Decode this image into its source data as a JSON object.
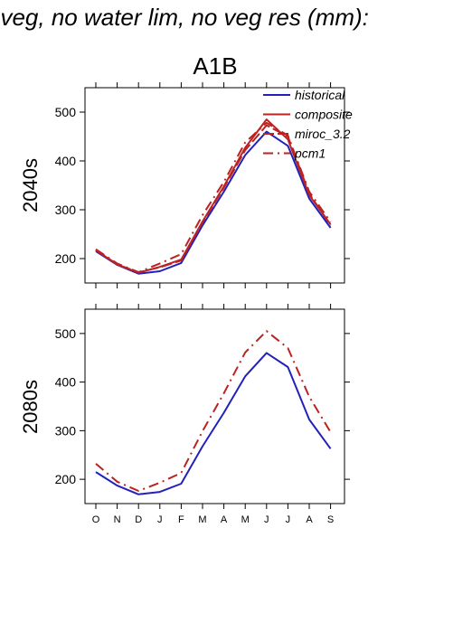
{
  "figure": {
    "title": "f veg, no water lim, no veg res (mm):",
    "scenario": "A1B"
  },
  "chart_data": [
    {
      "type": "line",
      "row_label": "2040s",
      "x": [
        "O",
        "N",
        "D",
        "J",
        "F",
        "M",
        "A",
        "M",
        "J",
        "J",
        "A",
        "S"
      ],
      "ylim": [
        150,
        550
      ],
      "yticks": [
        200,
        300,
        400,
        500
      ],
      "grid": false,
      "legend_position": "top-right",
      "series": [
        {
          "name": "historical",
          "color": "#2222bb",
          "style": "solid",
          "values": [
            215,
            187,
            169,
            174,
            191,
            268,
            337,
            412,
            460,
            431,
            323,
            263
          ]
        },
        {
          "name": "composite",
          "color": "#bb2222",
          "style": "solid",
          "values": [
            217,
            188,
            171,
            183,
            198,
            276,
            348,
            427,
            485,
            444,
            330,
            270
          ]
        },
        {
          "name": "miroc_3.2",
          "color": "#bb2222",
          "style": "longdash",
          "values": [
            218,
            188,
            172,
            182,
            196,
            274,
            345,
            422,
            473,
            450,
            333,
            268
          ]
        },
        {
          "name": "pcm1",
          "color": "#bb2222",
          "style": "dashdot",
          "values": [
            219,
            190,
            172,
            190,
            209,
            289,
            357,
            438,
            478,
            452,
            337,
            275
          ]
        }
      ]
    },
    {
      "type": "line",
      "row_label": "2080s",
      "x": [
        "O",
        "N",
        "D",
        "J",
        "F",
        "M",
        "A",
        "M",
        "J",
        "J",
        "A",
        "S"
      ],
      "ylim": [
        150,
        550
      ],
      "yticks": [
        200,
        300,
        400,
        500
      ],
      "grid": false,
      "series": [
        {
          "name": "historical",
          "color": "#2222bb",
          "style": "solid",
          "values": [
            215,
            187,
            169,
            174,
            191,
            268,
            337,
            412,
            460,
            431,
            323,
            263
          ]
        },
        {
          "name": "pcm1",
          "color": "#bb2222",
          "style": "dashdot",
          "values": [
            232,
            195,
            176,
            193,
            213,
            299,
            377,
            461,
            505,
            470,
            370,
            297
          ]
        }
      ]
    }
  ]
}
